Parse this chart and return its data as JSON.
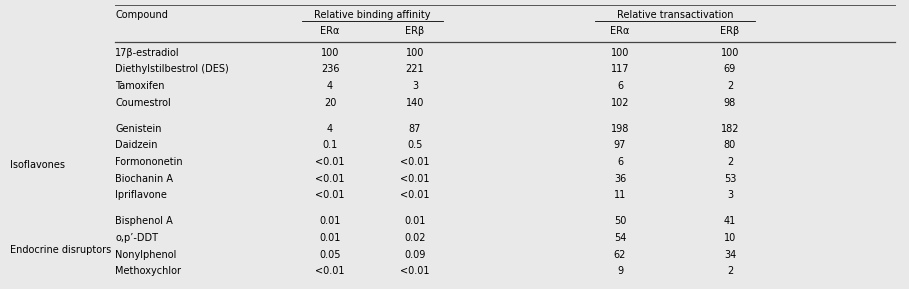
{
  "bg_color": "#e9e9e9",
  "title_bg": "#e9e9e9",
  "groups": [
    {
      "group_label": "",
      "rows": [
        [
          "17β-estradiol",
          "100",
          "100",
          "100",
          "100"
        ],
        [
          "Diethylstilbestrol (DES)",
          "236",
          "221",
          "117",
          "69"
        ],
        [
          "Tamoxifen",
          "4",
          "3",
          "6",
          "2"
        ],
        [
          "Coumestrol",
          "20",
          "140",
          "102",
          "98"
        ]
      ]
    },
    {
      "group_label": "Isoflavones",
      "rows": [
        [
          "Genistein",
          "4",
          "87",
          "198",
          "182"
        ],
        [
          "Daidzein",
          "0.1",
          "0.5",
          "97",
          "80"
        ],
        [
          "Formononetin",
          "<0.01",
          "<0.01",
          "6",
          "2"
        ],
        [
          "Biochanin A",
          "<0.01",
          "<0.01",
          "36",
          "53"
        ],
        [
          "Ipriflavone",
          "<0.01",
          "<0.01",
          "11",
          "3"
        ]
      ]
    },
    {
      "group_label": "Endocrine disruptors",
      "rows": [
        [
          "Bisphenol A",
          "0.01",
          "0.01",
          "50",
          "41"
        ],
        [
          "o,p’-DDT",
          "0.01",
          "0.02",
          "54",
          "10"
        ],
        [
          "Nonylphenol",
          "0.05",
          "0.09",
          "62",
          "34"
        ],
        [
          "Methoxychlor",
          "<0.01",
          "<0.01",
          "9",
          "2"
        ]
      ]
    }
  ],
  "font_size": 7.0,
  "line_color": "#555555",
  "thick_line_color": "#444444"
}
